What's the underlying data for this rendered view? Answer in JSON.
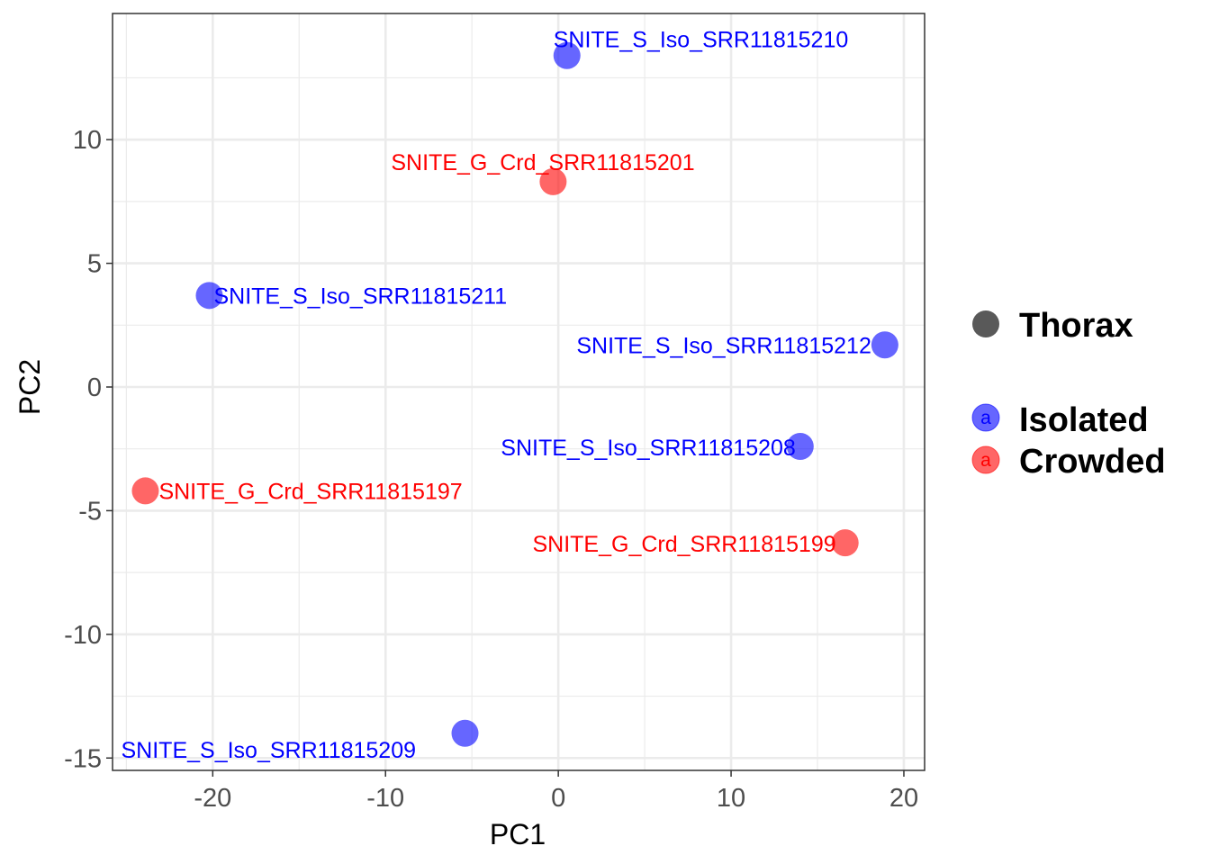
{
  "chart_data": {
    "type": "scatter",
    "xlabel": "PC1",
    "ylabel": "PC2",
    "xlim": [
      -25.8,
      21.2
    ],
    "ylim": [
      -15.5,
      15.1
    ],
    "x_ticks": [
      -20,
      -10,
      0,
      10,
      20
    ],
    "y_ticks": [
      -15,
      -10,
      -5,
      0,
      5,
      10
    ],
    "x_tick_labels": [
      "-20",
      "-10",
      "0",
      "10",
      "20"
    ],
    "y_tick_labels": [
      "-15",
      "-10",
      "-5",
      "0",
      "5",
      "10"
    ],
    "grid": true,
    "legend_placement": "right",
    "colors": {
      "Isolated": "#0000ff",
      "Crowded": "#ff0000",
      "shape_key": "#595959",
      "grid": "#ebebeb",
      "panel_border": "#333333"
    },
    "point_opacity": 0.6,
    "legend": {
      "shape": [
        {
          "label": "Thorax"
        }
      ],
      "color": [
        {
          "label": "Isolated",
          "key_glyph": "a"
        },
        {
          "label": "Crowded",
          "key_glyph": "a"
        }
      ]
    },
    "series": [
      {
        "name": "Isolated",
        "points": [
          {
            "x": 0.5,
            "y": 13.4,
            "label": "SNITE_S_Iso_SRR11815210"
          },
          {
            "x": -20.2,
            "y": 3.7,
            "label": "SNITE_S_Iso_SRR11815211"
          },
          {
            "x": 18.9,
            "y": 1.7,
            "label": "SNITE_S_Iso_SRR11815212"
          },
          {
            "x": 14.0,
            "y": -2.4,
            "label": "SNITE_S_Iso_SRR11815208"
          },
          {
            "x": -5.4,
            "y": -14.0,
            "label": "SNITE_S_Iso_SRR11815209"
          }
        ]
      },
      {
        "name": "Crowded",
        "points": [
          {
            "x": -0.3,
            "y": 8.3,
            "label": "SNITE_G_Crd_SRR11815201"
          },
          {
            "x": -23.9,
            "y": -4.2,
            "label": "SNITE_G_Crd_SRR11815197"
          },
          {
            "x": 16.6,
            "y": -6.3,
            "label": "SNITE_G_Crd_SRR11815199"
          }
        ]
      }
    ]
  }
}
